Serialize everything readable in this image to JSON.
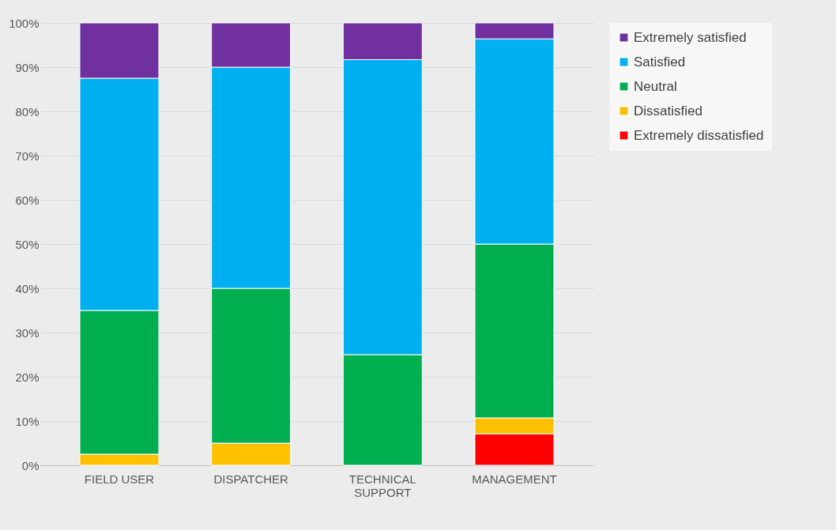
{
  "chart_data": {
    "type": "bar",
    "stacked": true,
    "categories": [
      "FIELD USER",
      "DISPATCHER",
      "TECHNICAL SUPPORT",
      "MANAGEMENT"
    ],
    "series": [
      {
        "name": "Extremely dissatisfied",
        "color": "#ff0000",
        "values": [
          0,
          0,
          0,
          7.1
        ]
      },
      {
        "name": "Dissatisfied",
        "color": "#ffc000",
        "values": [
          2.5,
          5,
          0,
          3.6
        ]
      },
      {
        "name": "Neutral",
        "color": "#00b050",
        "values": [
          32.5,
          35,
          25,
          39.3
        ]
      },
      {
        "name": "Satisfied",
        "color": "#00b0f0",
        "values": [
          52.5,
          50,
          66.7,
          46.4
        ]
      },
      {
        "name": "Extremely satisfied",
        "color": "#7030a0",
        "values": [
          12.5,
          10,
          8.3,
          3.6
        ]
      }
    ],
    "ylim": [
      0,
      100
    ],
    "yticks": [
      {
        "value": 0,
        "label": "0%"
      },
      {
        "value": 10,
        "label": "10%"
      },
      {
        "value": 20,
        "label": "20%"
      },
      {
        "value": 30,
        "label": "30%"
      },
      {
        "value": 40,
        "label": "40%"
      },
      {
        "value": 50,
        "label": "50%"
      },
      {
        "value": 60,
        "label": "60%"
      },
      {
        "value": 70,
        "label": "70%"
      },
      {
        "value": 80,
        "label": "80%"
      },
      {
        "value": 90,
        "label": "90%"
      },
      {
        "value": 100,
        "label": "100%"
      }
    ],
    "grid": "y",
    "legend": "right"
  }
}
